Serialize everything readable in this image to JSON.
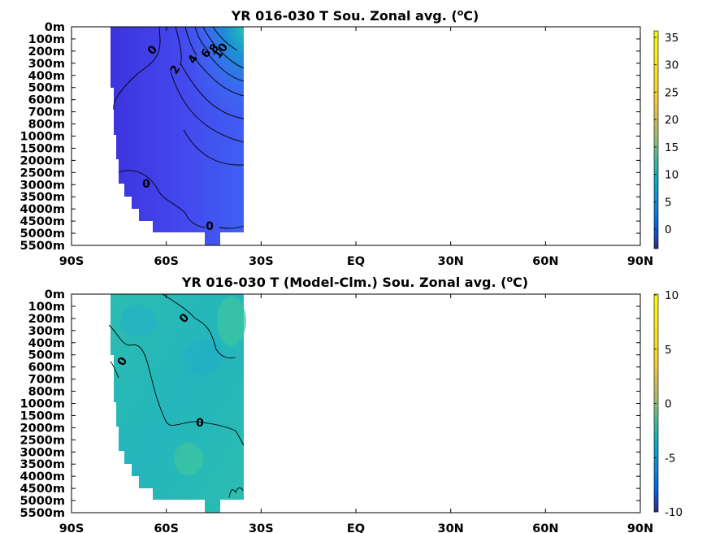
{
  "chart_data": [
    {
      "type": "heatmap",
      "title": "YR 016-030 T Sou. Zonal avg. (",
      "title_sup": "o",
      "title_end": "C)",
      "x_ticks": [
        "90S",
        "60S",
        "30S",
        "EQ",
        "30N",
        "60N",
        "90N"
      ],
      "y_ticks": [
        "0m",
        "100m",
        "200m",
        "300m",
        "400m",
        "500m",
        "600m",
        "700m",
        "800m",
        "1000m",
        "1500m",
        "2000m",
        "2500m",
        "3000m",
        "3500m",
        "4000m",
        "4500m",
        "5000m",
        "5500m"
      ],
      "colorbar_ticks": [
        "35",
        "30",
        "25",
        "20",
        "15",
        "10",
        "5",
        "0"
      ],
      "colorbar_range": [
        -4,
        36
      ],
      "contour_labels": [
        "0",
        "2",
        "4",
        "6",
        "8",
        "10",
        "0",
        "0"
      ],
      "data_extent_lat": [
        -78,
        -35
      ]
    },
    {
      "type": "heatmap",
      "title": "YR 016-030 T (Model-Clm.) Sou. Zonal avg. (",
      "title_sup": "o",
      "title_end": "C)",
      "x_ticks": [
        "90S",
        "60S",
        "30S",
        "EQ",
        "30N",
        "60N",
        "90N"
      ],
      "y_ticks": [
        "0m",
        "100m",
        "200m",
        "300m",
        "400m",
        "500m",
        "600m",
        "700m",
        "800m",
        "1000m",
        "1500m",
        "2000m",
        "2500m",
        "3000m",
        "3500m",
        "4000m",
        "4500m",
        "5000m",
        "5500m"
      ],
      "colorbar_ticks": [
        "10",
        "5",
        "0",
        "-5",
        "-10"
      ],
      "colorbar_range": [
        -10,
        10
      ],
      "contour_labels": [
        "0",
        "0",
        "0"
      ],
      "data_extent_lat": [
        -78,
        -35
      ]
    }
  ],
  "colors": {
    "upper_deep": "#3a3ee6",
    "upper_mid": "#4258f0",
    "upper_warm": "#1fa0c8",
    "upper_warmest": "#2ec8a8",
    "lower_base": "#2bbcb4",
    "lower_warm": "#3fc2a0",
    "lower_cool": "#22b0c8"
  }
}
